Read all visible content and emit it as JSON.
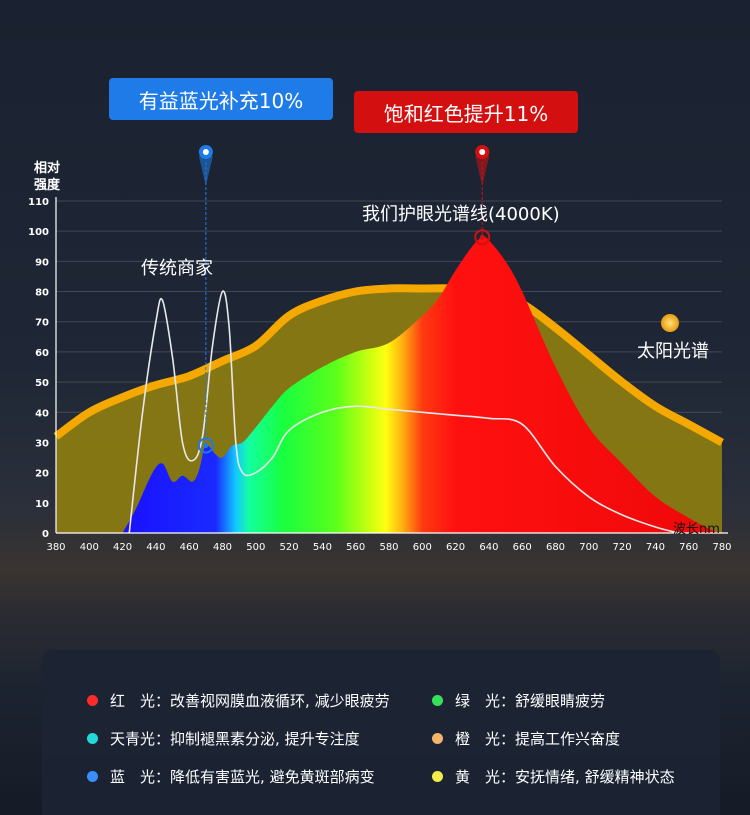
{
  "callouts": {
    "blue_boost": "有益蓝光补充10%",
    "red_boost": "饱和红色提升11%"
  },
  "series_labels": {
    "eye_care": "我们护眼光谱线(4000K)",
    "traditional": "传统商家",
    "sun": "太阳光谱"
  },
  "colors": {
    "blue_callout": "#1e7be8",
    "red_callout": "#d40f10",
    "sun_fill": "#8a7a12",
    "sun_stroke": "#f5a800",
    "traditional_stroke": "#e8e8e8"
  },
  "chart_data": {
    "type": "area",
    "ylabel": "相对强度",
    "xlabel": "波长nm",
    "xlim": [
      380,
      780
    ],
    "ylim": [
      0,
      110
    ],
    "x_ticks": [
      380,
      400,
      420,
      440,
      460,
      480,
      500,
      520,
      540,
      560,
      580,
      600,
      620,
      640,
      660,
      680,
      700,
      720,
      740,
      760,
      780
    ],
    "y_ticks": [
      0,
      10,
      20,
      30,
      40,
      50,
      60,
      70,
      80,
      90,
      100,
      110
    ],
    "grid": true,
    "series": [
      {
        "name": "太阳光谱",
        "x": [
          380,
          400,
          420,
          440,
          460,
          480,
          500,
          520,
          540,
          560,
          580,
          600,
          620,
          640,
          660,
          680,
          700,
          720,
          740,
          760,
          780
        ],
        "y": [
          32,
          40,
          45,
          49,
          52,
          57,
          62,
          72,
          77,
          80,
          81,
          81,
          81,
          80,
          76,
          68,
          59,
          50,
          42,
          36,
          30
        ]
      },
      {
        "name": "传统商家",
        "x": [
          424,
          432,
          440,
          444,
          450,
          456,
          462,
          468,
          474,
          480,
          484,
          488,
          492,
          500,
          510,
          520,
          540,
          560,
          580,
          600,
          620,
          640,
          660,
          680,
          700,
          720,
          740,
          754
        ],
        "y": [
          0,
          40,
          70,
          77,
          58,
          30,
          24,
          32,
          62,
          80,
          68,
          30,
          20,
          20,
          25,
          34,
          40,
          42,
          41,
          40,
          39,
          38,
          36,
          22,
          12,
          6,
          2,
          0
        ]
      },
      {
        "name": "我们护眼光谱线(4000K)",
        "x": [
          420,
          428,
          438,
          444,
          450,
          456,
          462,
          466,
          470,
          476,
          480,
          486,
          492,
          500,
          510,
          520,
          540,
          560,
          580,
          600,
          610,
          620,
          630,
          636,
          640,
          650,
          660,
          680,
          700,
          720,
          740,
          760,
          770,
          778
        ],
        "y": [
          0,
          8,
          20,
          23,
          17,
          19,
          17,
          21,
          29,
          26,
          25,
          29,
          30,
          35,
          42,
          48,
          55,
          60,
          63,
          72,
          78,
          87,
          95,
          98,
          97,
          90,
          80,
          55,
          35,
          23,
          12,
          5,
          2,
          0
        ]
      }
    ],
    "markers": [
      {
        "x": 470,
        "y": 29,
        "color": "#1e7be8"
      },
      {
        "x": 636,
        "y": 98,
        "color": "#d40f10"
      }
    ]
  },
  "legend": [
    {
      "color": "#ff2a2a",
      "name": "红　光",
      "desc": "改善视网膜血液循环, 减少眼疲劳"
    },
    {
      "color": "#38e05a",
      "name": "绿　光",
      "desc": "舒缓眼睛疲劳"
    },
    {
      "color": "#22d8d8",
      "name": "天青光",
      "desc": "抑制褪黑素分泌, 提升专注度"
    },
    {
      "color": "#f4b56a",
      "name": "橙　光",
      "desc": "提高工作兴奋度"
    },
    {
      "color": "#3a8dff",
      "name": "蓝　光",
      "desc": "降低有害蓝光, 避免黄斑部病变"
    },
    {
      "color": "#f2ec4a",
      "name": "黄　光",
      "desc": "安抚情绪, 舒缓精神状态"
    }
  ]
}
